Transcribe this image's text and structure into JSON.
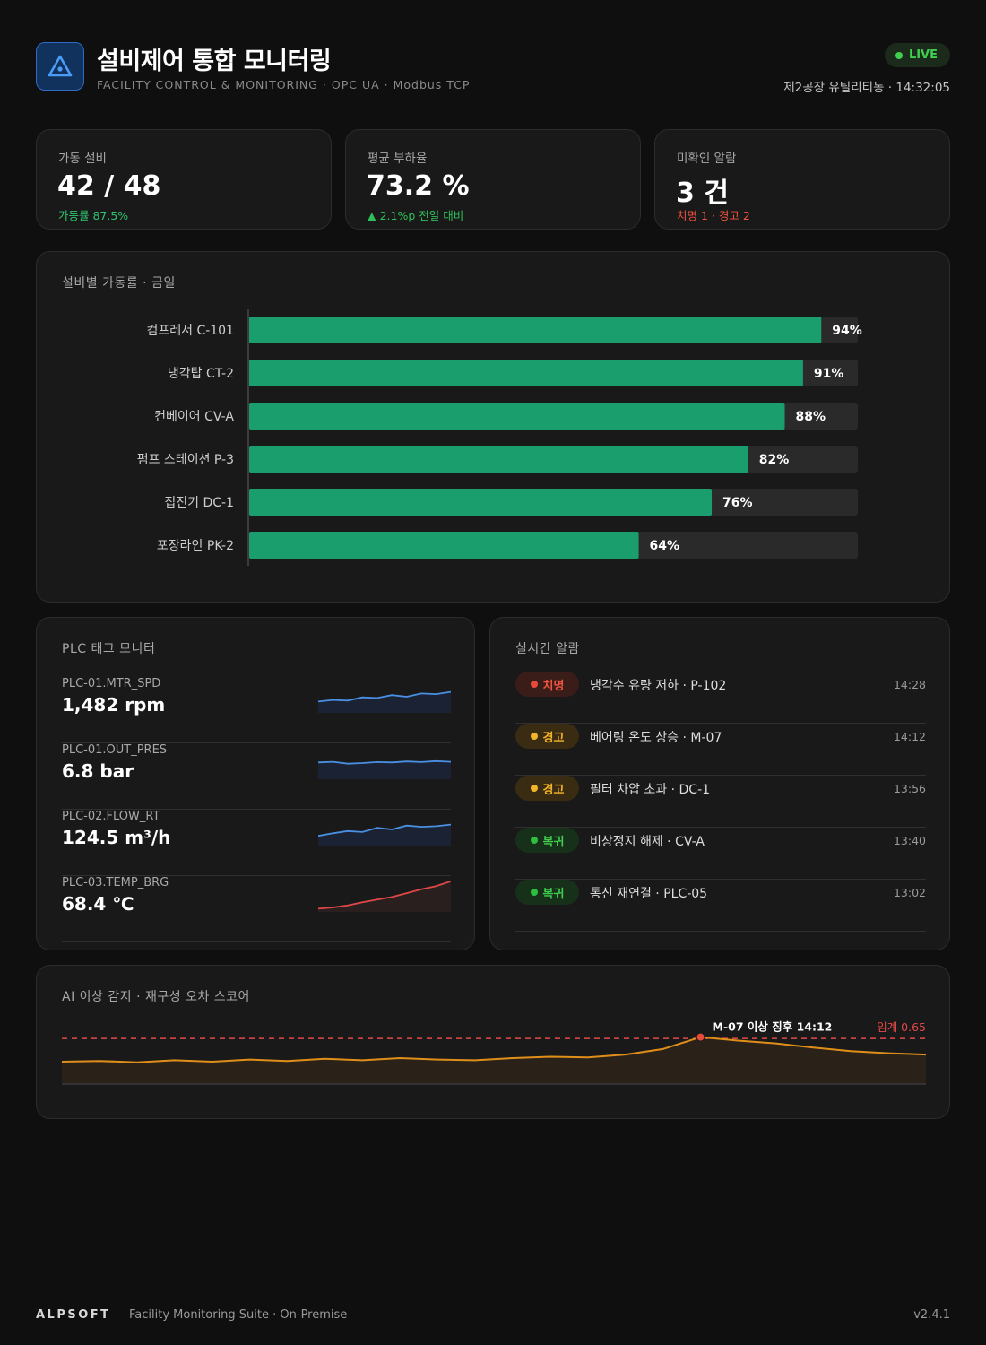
{
  "header": {
    "title": "설비제어 통합 모니터링",
    "subtitle": "FACILITY CONTROL & MONITORING · OPC UA · Modbus TCP",
    "live_label": "LIVE",
    "location": "제2공장 유틸리티동 · 14:32:05",
    "logo_icon": "warning-triangle-icon"
  },
  "kpis": {
    "running": {
      "label": "가동 설비",
      "value": "42 / 48",
      "sub": "가동률 87.5%"
    },
    "load": {
      "label": "평균 부하율",
      "value": "73.2 %",
      "sub": "▲ 2.1%p 전일 대비"
    },
    "alarms": {
      "label": "미확인 알람",
      "value": "3 건",
      "sub": "치명 1 · 경고 2"
    }
  },
  "availability": {
    "title": "설비별 가동률 · 금일",
    "chart_data": {
      "type": "bar",
      "orientation": "horizontal",
      "categories": [
        "컴프레서 C-101",
        "냉각탑 CT-2",
        "컨베이어 CV-A",
        "펌프 스테이션 P-3",
        "집진기 DC-1",
        "포장라인 PK-2"
      ],
      "values": [
        94,
        91,
        88,
        82,
        76,
        64
      ],
      "value_labels": [
        "94%",
        "91%",
        "88%",
        "82%",
        "76%",
        "64%"
      ],
      "xlim": [
        0,
        100
      ],
      "color": "#1a9e6e",
      "track_color": "#2a2a2a"
    }
  },
  "plc": {
    "title": "PLC 태그 모니터",
    "tags": [
      {
        "name": "PLC-01.MTR_SPD",
        "value": "1,482 rpm",
        "color": "#4a90e2",
        "trend": [
          0.35,
          0.4,
          0.38,
          0.48,
          0.46,
          0.55,
          0.5,
          0.6,
          0.58,
          0.65
        ]
      },
      {
        "name": "PLC-01.OUT_PRES",
        "value": "6.8 bar",
        "color": "#4a90e2",
        "trend": [
          0.52,
          0.54,
          0.48,
          0.5,
          0.53,
          0.52,
          0.55,
          0.53,
          0.56,
          0.54
        ]
      },
      {
        "name": "PLC-02.FLOW_RT",
        "value": "124.5 m³/h",
        "color": "#4a90e2",
        "trend": [
          0.3,
          0.38,
          0.45,
          0.42,
          0.55,
          0.5,
          0.62,
          0.58,
          0.6,
          0.65
        ]
      },
      {
        "name": "PLC-03.TEMP_BRG",
        "value": "68.4 ℃",
        "color": "#e04848",
        "trend": [
          0.1,
          0.14,
          0.2,
          0.3,
          0.38,
          0.46,
          0.58,
          0.7,
          0.8,
          0.95
        ]
      }
    ]
  },
  "alarms": {
    "title": "실시간 알람",
    "items": [
      {
        "level": "crit",
        "badge": "치명",
        "message": "냉각수 유량 저하 · P-102",
        "time": "14:28"
      },
      {
        "level": "warn",
        "badge": "경고",
        "message": "베어링 온도 상승 · M-07",
        "time": "14:12"
      },
      {
        "level": "warn",
        "badge": "경고",
        "message": "필터 차압 초과 · DC-1",
        "time": "13:56"
      },
      {
        "level": "ok",
        "badge": "복귀",
        "message": "비상정지 해제 · CV-A",
        "time": "13:40"
      },
      {
        "level": "ok",
        "badge": "복귀",
        "message": "통신 재연결 · PLC-05",
        "time": "13:02"
      }
    ]
  },
  "anomaly": {
    "title": "AI 이상 감지 · 재구성 오차 스코어",
    "chart_data": {
      "type": "area",
      "values": [
        0.32,
        0.33,
        0.31,
        0.34,
        0.32,
        0.35,
        0.33,
        0.36,
        0.34,
        0.37,
        0.35,
        0.34,
        0.37,
        0.39,
        0.38,
        0.42,
        0.5,
        0.67,
        0.62,
        0.58,
        0.52,
        0.47,
        0.44,
        0.42
      ],
      "threshold": 0.65,
      "threshold_label": "임계 0.65",
      "ylim": [
        0,
        0.92
      ],
      "annotation": {
        "index": 17,
        "text": "M-07 이상 징후 14:12"
      },
      "line_color": "#e08e1a",
      "threshold_color": "#e04848"
    }
  },
  "footer": {
    "brand": "ALPSOFT",
    "suite": "Facility Monitoring Suite · On-Premise",
    "version": "v2.4.1"
  }
}
